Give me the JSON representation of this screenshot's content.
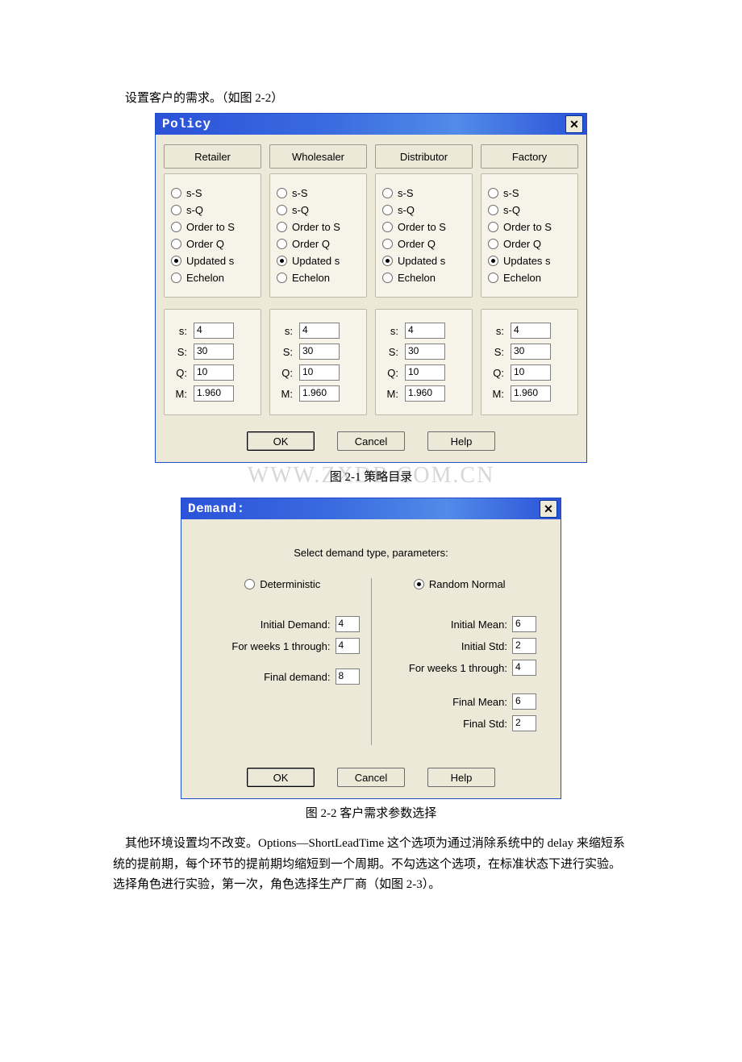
{
  "doc": {
    "line1": "设置客户的需求。（如图 2-2）",
    "caption1": "图 2-1 策略目录",
    "caption2": "图 2-2 客户需求参数选择",
    "watermark": "WWW.ZXDB.COM.CN",
    "body": "其他环境设置均不改变。Options—ShortLeadTime 这个选项为通过消除系统中的 delay 来缩短系统的提前期，每个环节的提前期均缩短到一个周期。不勾选这个选项，在标准状态下进行实验。选择角色进行实验，第一次，角色选择生产厂商（如图 2-3）。"
  },
  "policy": {
    "title": "Policy",
    "columns": [
      {
        "header": "Retailer",
        "options": [
          "s-S",
          "s-Q",
          "Order to S",
          "Order Q",
          "Updated s",
          "Echelon"
        ],
        "selected": 4,
        "params": {
          "s": "4",
          "S": "30",
          "Q": "10",
          "M": "1.960"
        }
      },
      {
        "header": "Wholesaler",
        "options": [
          "s-S",
          "s-Q",
          "Order to S",
          "Order Q",
          "Updated s",
          "Echelon"
        ],
        "selected": 4,
        "params": {
          "s": "4",
          "S": "30",
          "Q": "10",
          "M": "1.960"
        }
      },
      {
        "header": "Distributor",
        "options": [
          "s-S",
          "s-Q",
          "Order to S",
          "Order Q",
          "Updated s",
          "Echelon"
        ],
        "selected": 4,
        "params": {
          "s": "4",
          "S": "30",
          "Q": "10",
          "M": "1.960"
        }
      },
      {
        "header": "Factory",
        "options": [
          "s-S",
          "s-Q",
          "Order to S",
          "Order Q",
          "Updates s",
          "Echelon"
        ],
        "selected": 4,
        "params": {
          "s": "4",
          "S": "30",
          "Q": "10",
          "M": "1.960"
        }
      }
    ],
    "param_labels": {
      "s": "s:",
      "S": "S:",
      "Q": "Q:",
      "M": "M:"
    },
    "buttons": {
      "ok": "OK",
      "cancel": "Cancel",
      "help": "Help"
    }
  },
  "demand": {
    "title": "Demand:",
    "instruction": "Select demand type, parameters:",
    "left": {
      "mode_label": "Deterministic",
      "selected": false,
      "fields": {
        "initial_demand": {
          "label": "Initial Demand:",
          "value": "4"
        },
        "weeks": {
          "label": "For weeks 1 through:",
          "value": "4"
        },
        "final_demand": {
          "label": "Final demand:",
          "value": "8"
        }
      }
    },
    "right": {
      "mode_label": "Random Normal",
      "selected": true,
      "fields": {
        "initial_mean": {
          "label": "Initial Mean:",
          "value": "6"
        },
        "initial_std": {
          "label": "Initial Std:",
          "value": "2"
        },
        "weeks": {
          "label": "For weeks 1 through:",
          "value": "4"
        },
        "final_mean": {
          "label": "Final Mean:",
          "value": "6"
        },
        "final_std": {
          "label": "Final Std:",
          "value": "2"
        }
      }
    },
    "buttons": {
      "ok": "OK",
      "cancel": "Cancel",
      "help": "Help"
    }
  },
  "colors": {
    "titlebar_gradient": [
      "#2b52d8",
      "#3a6be0",
      "#528be8",
      "#2b52d8"
    ],
    "dialog_bg": "#ece9d8",
    "group_bg": "#f6f3e9",
    "border": "#9e9a8f"
  }
}
